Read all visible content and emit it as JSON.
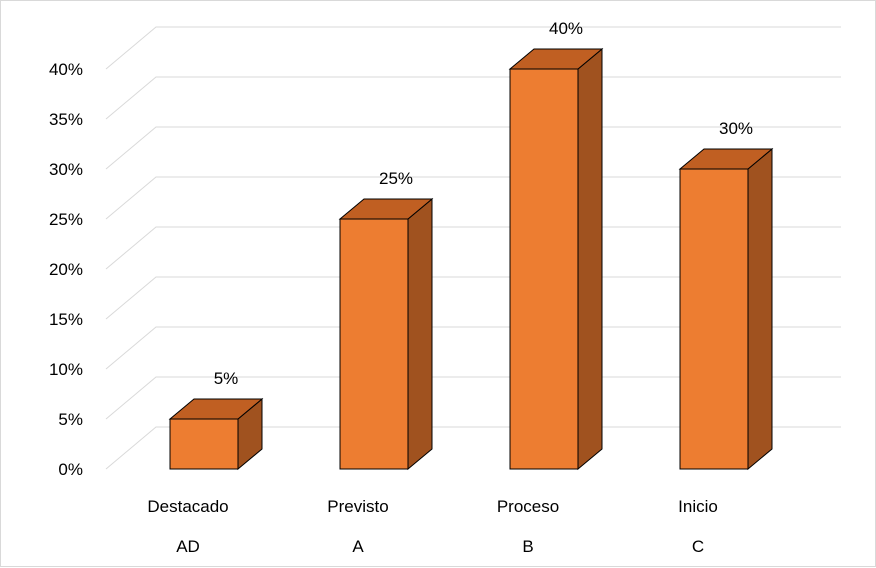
{
  "chart_data": {
    "type": "bar",
    "categories": [
      {
        "name": "Destacado",
        "code": "AD"
      },
      {
        "name": "Previsto",
        "code": "A"
      },
      {
        "name": "Proceso",
        "code": "B"
      },
      {
        "name": "Inicio",
        "code": "C"
      }
    ],
    "values": [
      5,
      25,
      40,
      30
    ],
    "data_labels": [
      "5%",
      "25%",
      "40%",
      "30%"
    ],
    "ylim": [
      0,
      40
    ],
    "yticks": [
      0,
      5,
      10,
      15,
      20,
      25,
      30,
      35,
      40
    ],
    "ytick_labels": [
      "0%",
      "5%",
      "10%",
      "15%",
      "20%",
      "25%",
      "30%",
      "35%",
      "40%"
    ],
    "three_d": true,
    "grid": true,
    "legend": "none",
    "colors": {
      "bar_front": "#ED7D31",
      "bar_side": "#A0521F",
      "bar_top": "#C05F22",
      "bar_outline": "#000000",
      "gridline": "#d9d9d9"
    }
  }
}
